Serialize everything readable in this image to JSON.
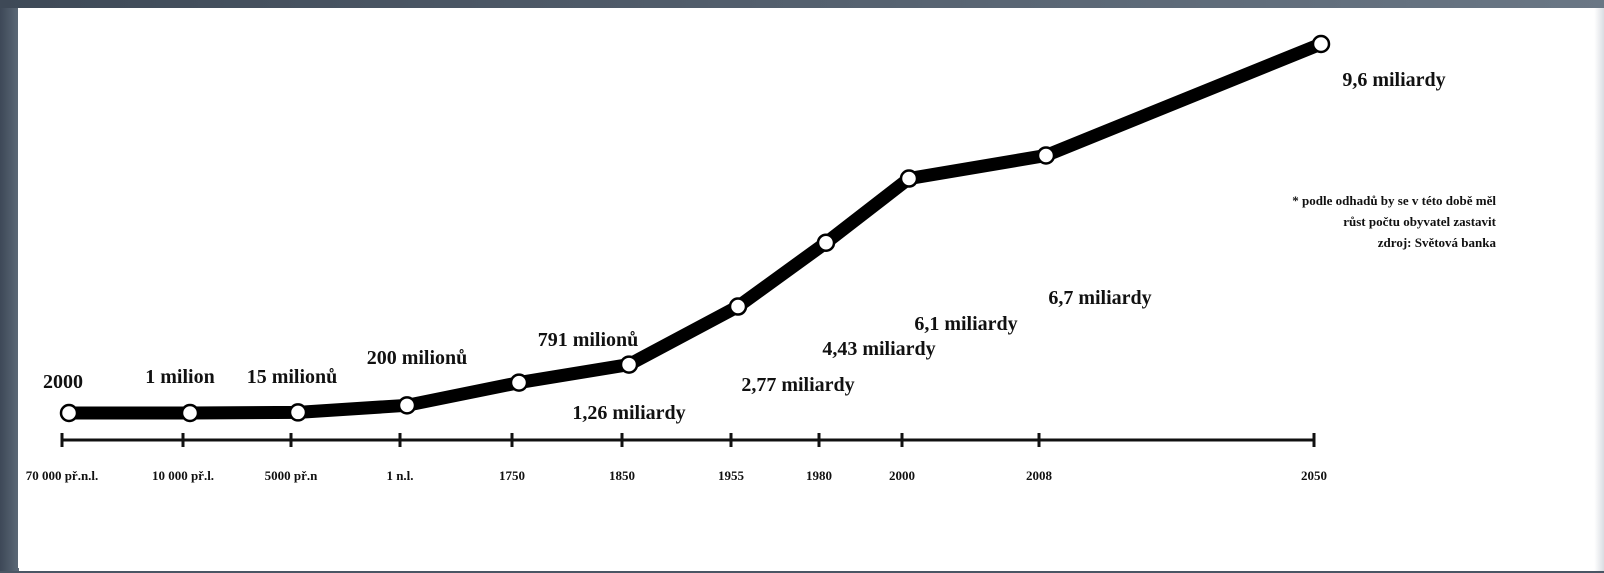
{
  "chart_data": {
    "type": "line",
    "title": "",
    "xlabel": "",
    "ylabel": "",
    "categories": [
      "70 000 př.n.l.",
      "10 000 př.l.",
      "5000 př.n",
      "1 n.l.",
      "1750",
      "1850",
      "1955",
      "1980",
      "2000",
      "2008",
      "2050"
    ],
    "series": [
      {
        "values": [
          2000,
          1000000,
          15000000,
          200000000,
          791000000,
          1260000000,
          2770000000,
          4430000000,
          6100000000,
          6700000000,
          9600000000
        ]
      }
    ],
    "data_labels": [
      "2000",
      "1 milion",
      "15 milionů",
      "200 milionů",
      "791 milionů",
      "1,26 miliardy",
      "2,77 miliardy",
      "4,43 miliardy",
      "6,1 miliardy",
      "6,7 miliardy",
      "9,6 miliardy"
    ],
    "annotation": {
      "line1": "* podle odhadů by se v této době měl",
      "line2": "růst počtu obyvatel zastavit",
      "line3": "zdroj: Světová banka"
    },
    "grid": false,
    "legend": "none",
    "line_color": "#000000",
    "marker_fill": "#ffffff"
  }
}
